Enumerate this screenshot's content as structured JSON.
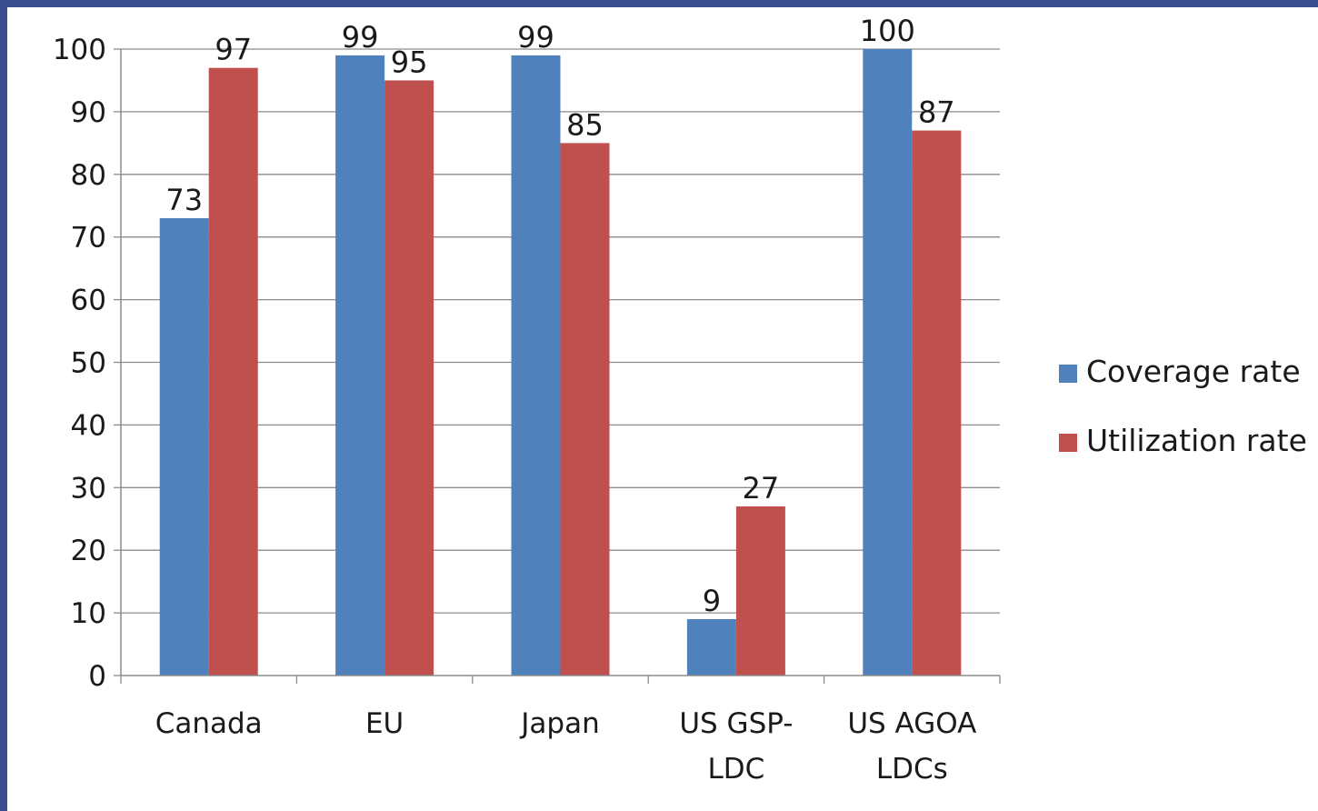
{
  "chart_data": {
    "type": "bar",
    "categories": [
      [
        "Canada"
      ],
      [
        "EU"
      ],
      [
        "Japan"
      ],
      [
        "US GSP-",
        "LDC"
      ],
      [
        "US AGOA",
        "LDCs"
      ]
    ],
    "series": [
      {
        "name": "Coverage rate",
        "values": [
          73,
          99,
          99,
          9,
          100
        ],
        "color": "#4f81bd"
      },
      {
        "name": "Utilization rate",
        "values": [
          97,
          95,
          85,
          27,
          87
        ],
        "color": "#c0504d"
      }
    ],
    "ylim": [
      0,
      100
    ],
    "yticks": [
      0,
      10,
      20,
      30,
      40,
      50,
      60,
      70,
      80,
      90,
      100
    ],
    "grid": true,
    "legend_position": "right",
    "data_labels": true,
    "title": "",
    "xlabel": "",
    "ylabel": ""
  }
}
